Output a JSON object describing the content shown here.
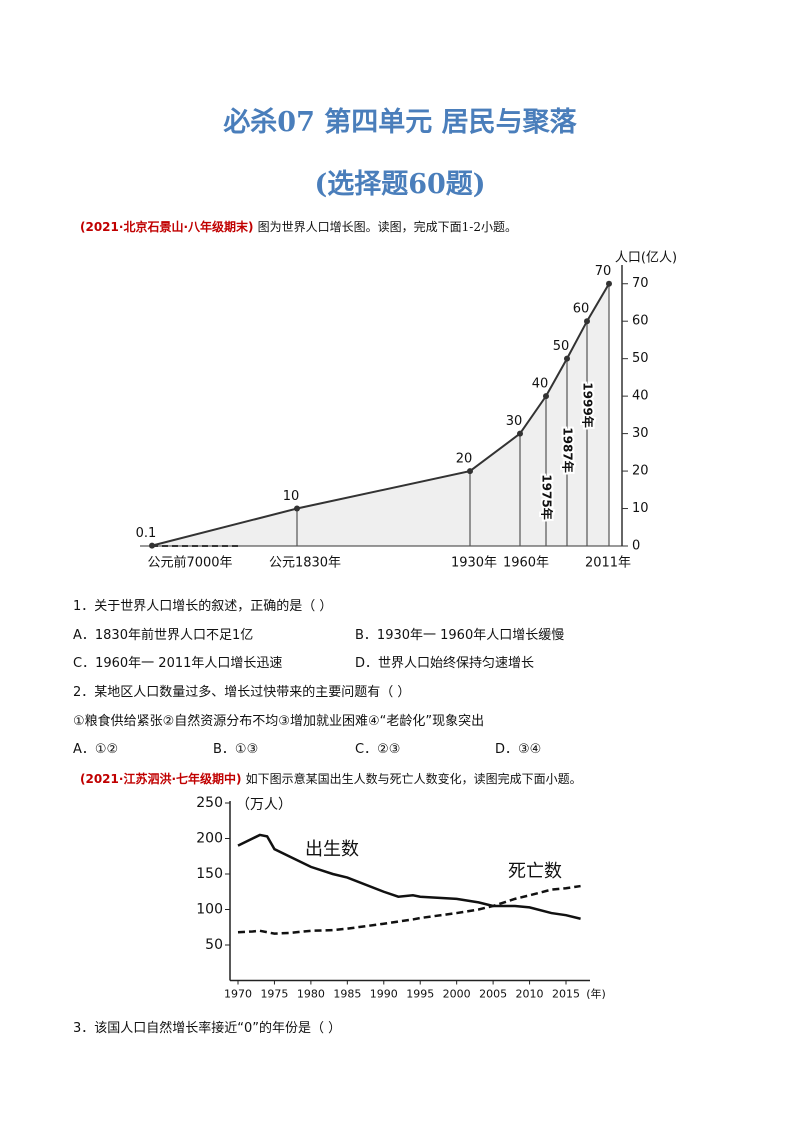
{
  "title": "必杀07  第四单元 居民与聚落",
  "subtitle": "(选择题60题)",
  "groups": [
    {
      "source": "(2021·北京石景山·八年级期末)",
      "intro": "图为世界人口增长图。读图，完成下面1-2小题。",
      "questions": [
        {
          "stem": "1．关于世界人口增长的叙述，正确的是（  ）",
          "options": [
            "A．1830年前世界人口不足1亿",
            "B．1930年一 1960年人口增长缓慢",
            "C．1960年一 2011年人口增长迅速",
            "D．世界人口始终保持匀速增长"
          ]
        },
        {
          "stem": "2．某地区人口数量过多、增长过快带来的主要问题有（  ）",
          "items": "①粮食供给紧张②自然资源分布不均③增加就业困难④“老龄化”现象突出",
          "options": [
            "A．①②",
            "B．①③",
            "C．②③",
            "D．③④"
          ]
        }
      ]
    },
    {
      "source": "(2021·江苏泗洪·七年级期中)",
      "intro": "如下图示意某国出生人数与死亡人数变化，读图完成下面小题。",
      "questions": [
        {
          "stem": "3．该国人口自然增长率接近“0”的年份是（  ）"
        }
      ]
    }
  ],
  "chart_data": [
    {
      "type": "line",
      "y_label": "人口(亿人)",
      "categories": [
        "公元前7000年",
        "公元1830年",
        "1930年",
        "1960年",
        "1975年",
        "1987年",
        "1999年",
        "2011年"
      ],
      "values": [
        0.1,
        10,
        20,
        30,
        40,
        50,
        60,
        70
      ],
      "color": "#333333",
      "ylim": [
        0,
        75
      ],
      "yticks": [
        0,
        10,
        20,
        30,
        40,
        50,
        60,
        70
      ]
    },
    {
      "type": "line",
      "y_label": "（万人）",
      "x_label": "(年)",
      "x": [
        1970,
        1972,
        1973,
        1974,
        1975,
        1977,
        1980,
        1983,
        1985,
        1990,
        1992,
        1994,
        1995,
        2000,
        2003,
        2005,
        2008,
        2010,
        2013,
        2015,
        2017
      ],
      "series": [
        {
          "name": "出生数",
          "color": "#111111",
          "line_style": "solid",
          "values": [
            190,
            200,
            205,
            203,
            185,
            175,
            160,
            150,
            145,
            125,
            118,
            120,
            118,
            115,
            110,
            105,
            105,
            103,
            95,
            92,
            87
          ]
        },
        {
          "name": "死亡数",
          "color": "#111111",
          "line_style": "dashed",
          "values": [
            68,
            69,
            70,
            68,
            66,
            67,
            70,
            71,
            73,
            80,
            83,
            86,
            88,
            95,
            100,
            105,
            115,
            120,
            128,
            130,
            133
          ]
        }
      ],
      "xlim": [
        1970,
        2017
      ],
      "xticks": [
        1970,
        1975,
        1980,
        1985,
        1990,
        1995,
        2000,
        2005,
        2010,
        2015
      ],
      "ylim": [
        0,
        250
      ],
      "yticks": [
        50,
        100,
        150,
        200,
        250
      ]
    }
  ]
}
